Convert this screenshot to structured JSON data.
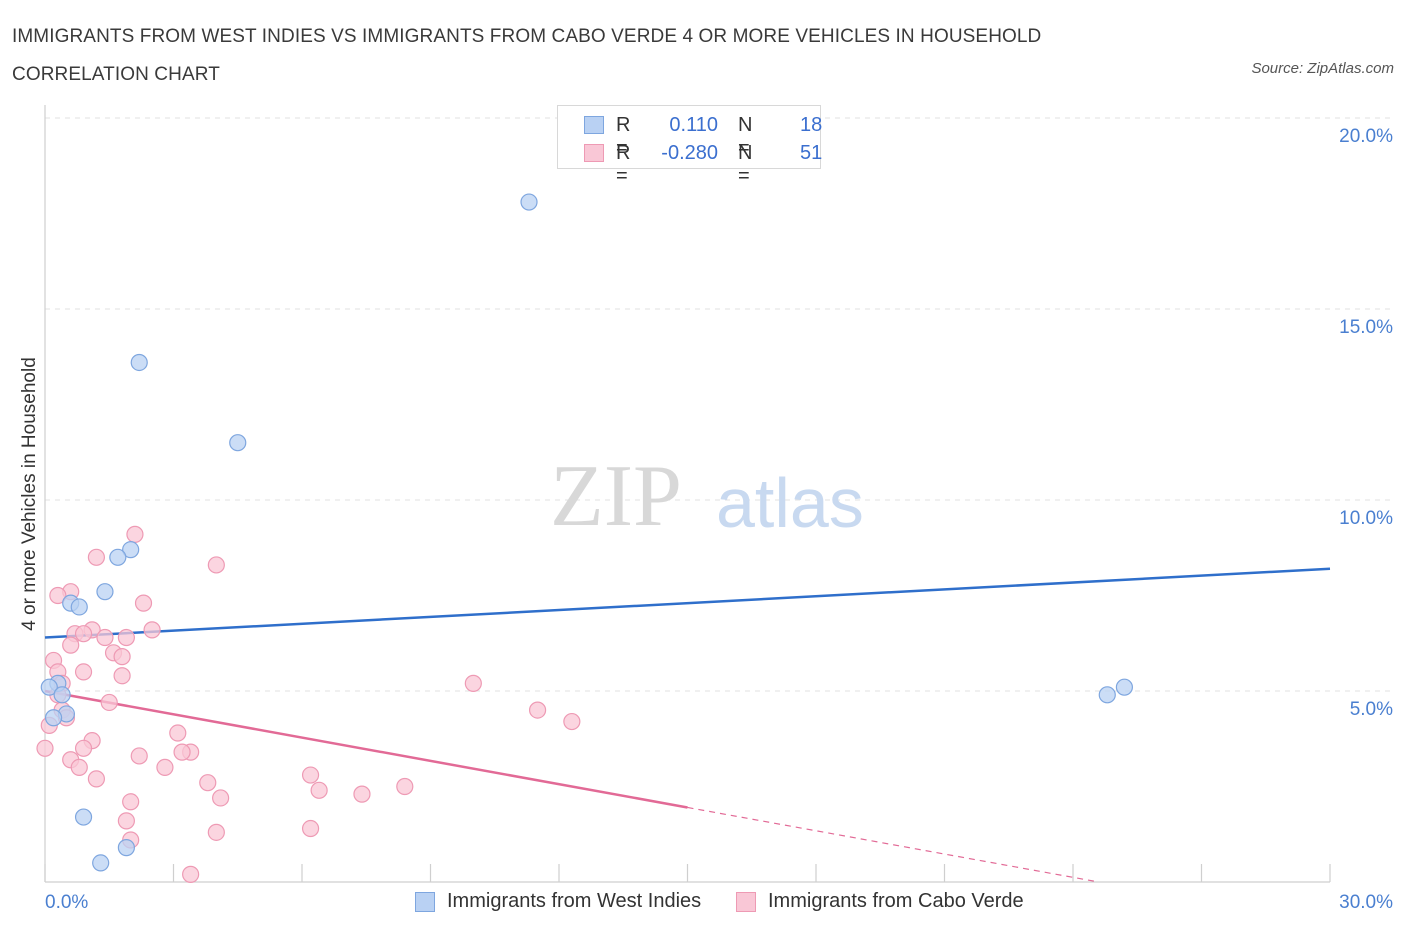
{
  "title": "IMMIGRANTS FROM WEST INDIES VS IMMIGRANTS FROM CABO VERDE 4 OR MORE VEHICLES IN HOUSEHOLD CORRELATION CHART",
  "source": "Source: ZipAtlas.com",
  "watermark": {
    "zip": "ZIP",
    "atlas": "atlas"
  },
  "legend": {
    "west_indies": {
      "r_label": "R =",
      "r_value": "0.110",
      "n_label": "N =",
      "n_value": "18"
    },
    "cabo_verde": {
      "r_label": "R =",
      "r_value": "-0.280",
      "n_label": "N =",
      "n_value": "51"
    }
  },
  "bottom_legend": {
    "west_indies": "Immigrants from West Indies",
    "cabo_verde": "Immigrants from Cabo Verde"
  },
  "colors": {
    "west_indies_fill": "#b9d1f3",
    "west_indies_stroke": "#7ea6df",
    "west_indies_line": "#2f6fcb",
    "cabo_verde_fill": "#f9c7d6",
    "cabo_verde_stroke": "#ee9ab4",
    "cabo_verde_line": "#e26a96",
    "tick_text": "#4a7fd0"
  },
  "chart_data": {
    "type": "scatter",
    "title": "IMMIGRANTS FROM WEST INDIES VS IMMIGRANTS FROM CABO VERDE 4 OR MORE VEHICLES IN HOUSEHOLD CORRELATION CHART",
    "xlabel": "",
    "ylabel": "4 or more Vehicles in Household",
    "xlim": [
      0,
      30
    ],
    "ylim": [
      0,
      20
    ],
    "x_tick_labels": [
      {
        "value": 0,
        "label": "0.0%"
      },
      {
        "value": 30,
        "label": "30.0%"
      }
    ],
    "y_tick_labels": [
      {
        "value": 5,
        "label": "5.0%"
      },
      {
        "value": 10,
        "label": "10.0%"
      },
      {
        "value": 15,
        "label": "15.0%"
      },
      {
        "value": 20,
        "label": "20.0%"
      }
    ],
    "grid": true,
    "series": [
      {
        "name": "Immigrants from West Indies",
        "r": 0.11,
        "n": 18,
        "points": [
          [
            11.3,
            17.8
          ],
          [
            2.2,
            13.6
          ],
          [
            4.5,
            11.5
          ],
          [
            2.0,
            8.7
          ],
          [
            1.7,
            8.5
          ],
          [
            1.4,
            7.6
          ],
          [
            0.6,
            7.3
          ],
          [
            0.8,
            7.2
          ],
          [
            0.3,
            5.2
          ],
          [
            0.1,
            5.1
          ],
          [
            0.4,
            4.9
          ],
          [
            0.5,
            4.4
          ],
          [
            0.2,
            4.3
          ],
          [
            0.9,
            1.7
          ],
          [
            1.9,
            0.9
          ],
          [
            1.3,
            0.5
          ],
          [
            24.8,
            4.9
          ],
          [
            25.2,
            5.1
          ]
        ],
        "trend": {
          "x": [
            0,
            30
          ],
          "y": [
            6.4,
            8.2
          ],
          "dashed_from": null
        }
      },
      {
        "name": "Immigrants from Cabo Verde",
        "r": -0.28,
        "n": 51,
        "points": [
          [
            2.1,
            9.1
          ],
          [
            1.2,
            8.5
          ],
          [
            4.0,
            8.3
          ],
          [
            0.6,
            7.6
          ],
          [
            0.3,
            7.5
          ],
          [
            2.3,
            7.3
          ],
          [
            0.7,
            6.5
          ],
          [
            1.1,
            6.6
          ],
          [
            2.5,
            6.6
          ],
          [
            0.9,
            6.5
          ],
          [
            1.9,
            6.4
          ],
          [
            1.4,
            6.4
          ],
          [
            0.6,
            6.2
          ],
          [
            1.6,
            6.0
          ],
          [
            1.8,
            5.9
          ],
          [
            0.2,
            5.8
          ],
          [
            0.3,
            5.5
          ],
          [
            0.9,
            5.5
          ],
          [
            1.8,
            5.4
          ],
          [
            0.4,
            5.2
          ],
          [
            10.0,
            5.2
          ],
          [
            0.3,
            4.9
          ],
          [
            1.5,
            4.7
          ],
          [
            0.4,
            4.5
          ],
          [
            11.5,
            4.5
          ],
          [
            0.5,
            4.3
          ],
          [
            12.3,
            4.2
          ],
          [
            0.1,
            4.1
          ],
          [
            3.1,
            3.9
          ],
          [
            1.1,
            3.7
          ],
          [
            0.0,
            3.5
          ],
          [
            0.9,
            3.5
          ],
          [
            3.4,
            3.4
          ],
          [
            3.2,
            3.4
          ],
          [
            2.2,
            3.3
          ],
          [
            0.6,
            3.2
          ],
          [
            0.8,
            3.0
          ],
          [
            2.8,
            3.0
          ],
          [
            6.2,
            2.8
          ],
          [
            1.2,
            2.7
          ],
          [
            3.8,
            2.6
          ],
          [
            6.4,
            2.4
          ],
          [
            8.4,
            2.5
          ],
          [
            7.4,
            2.3
          ],
          [
            4.1,
            2.2
          ],
          [
            2.0,
            2.1
          ],
          [
            1.9,
            1.6
          ],
          [
            4.0,
            1.3
          ],
          [
            6.2,
            1.4
          ],
          [
            2.0,
            1.1
          ],
          [
            3.4,
            0.2
          ]
        ],
        "trend": {
          "x": [
            0,
            24.6
          ],
          "y": [
            5.0,
            0.0
          ],
          "dashed_from": 15.0
        }
      }
    ]
  }
}
